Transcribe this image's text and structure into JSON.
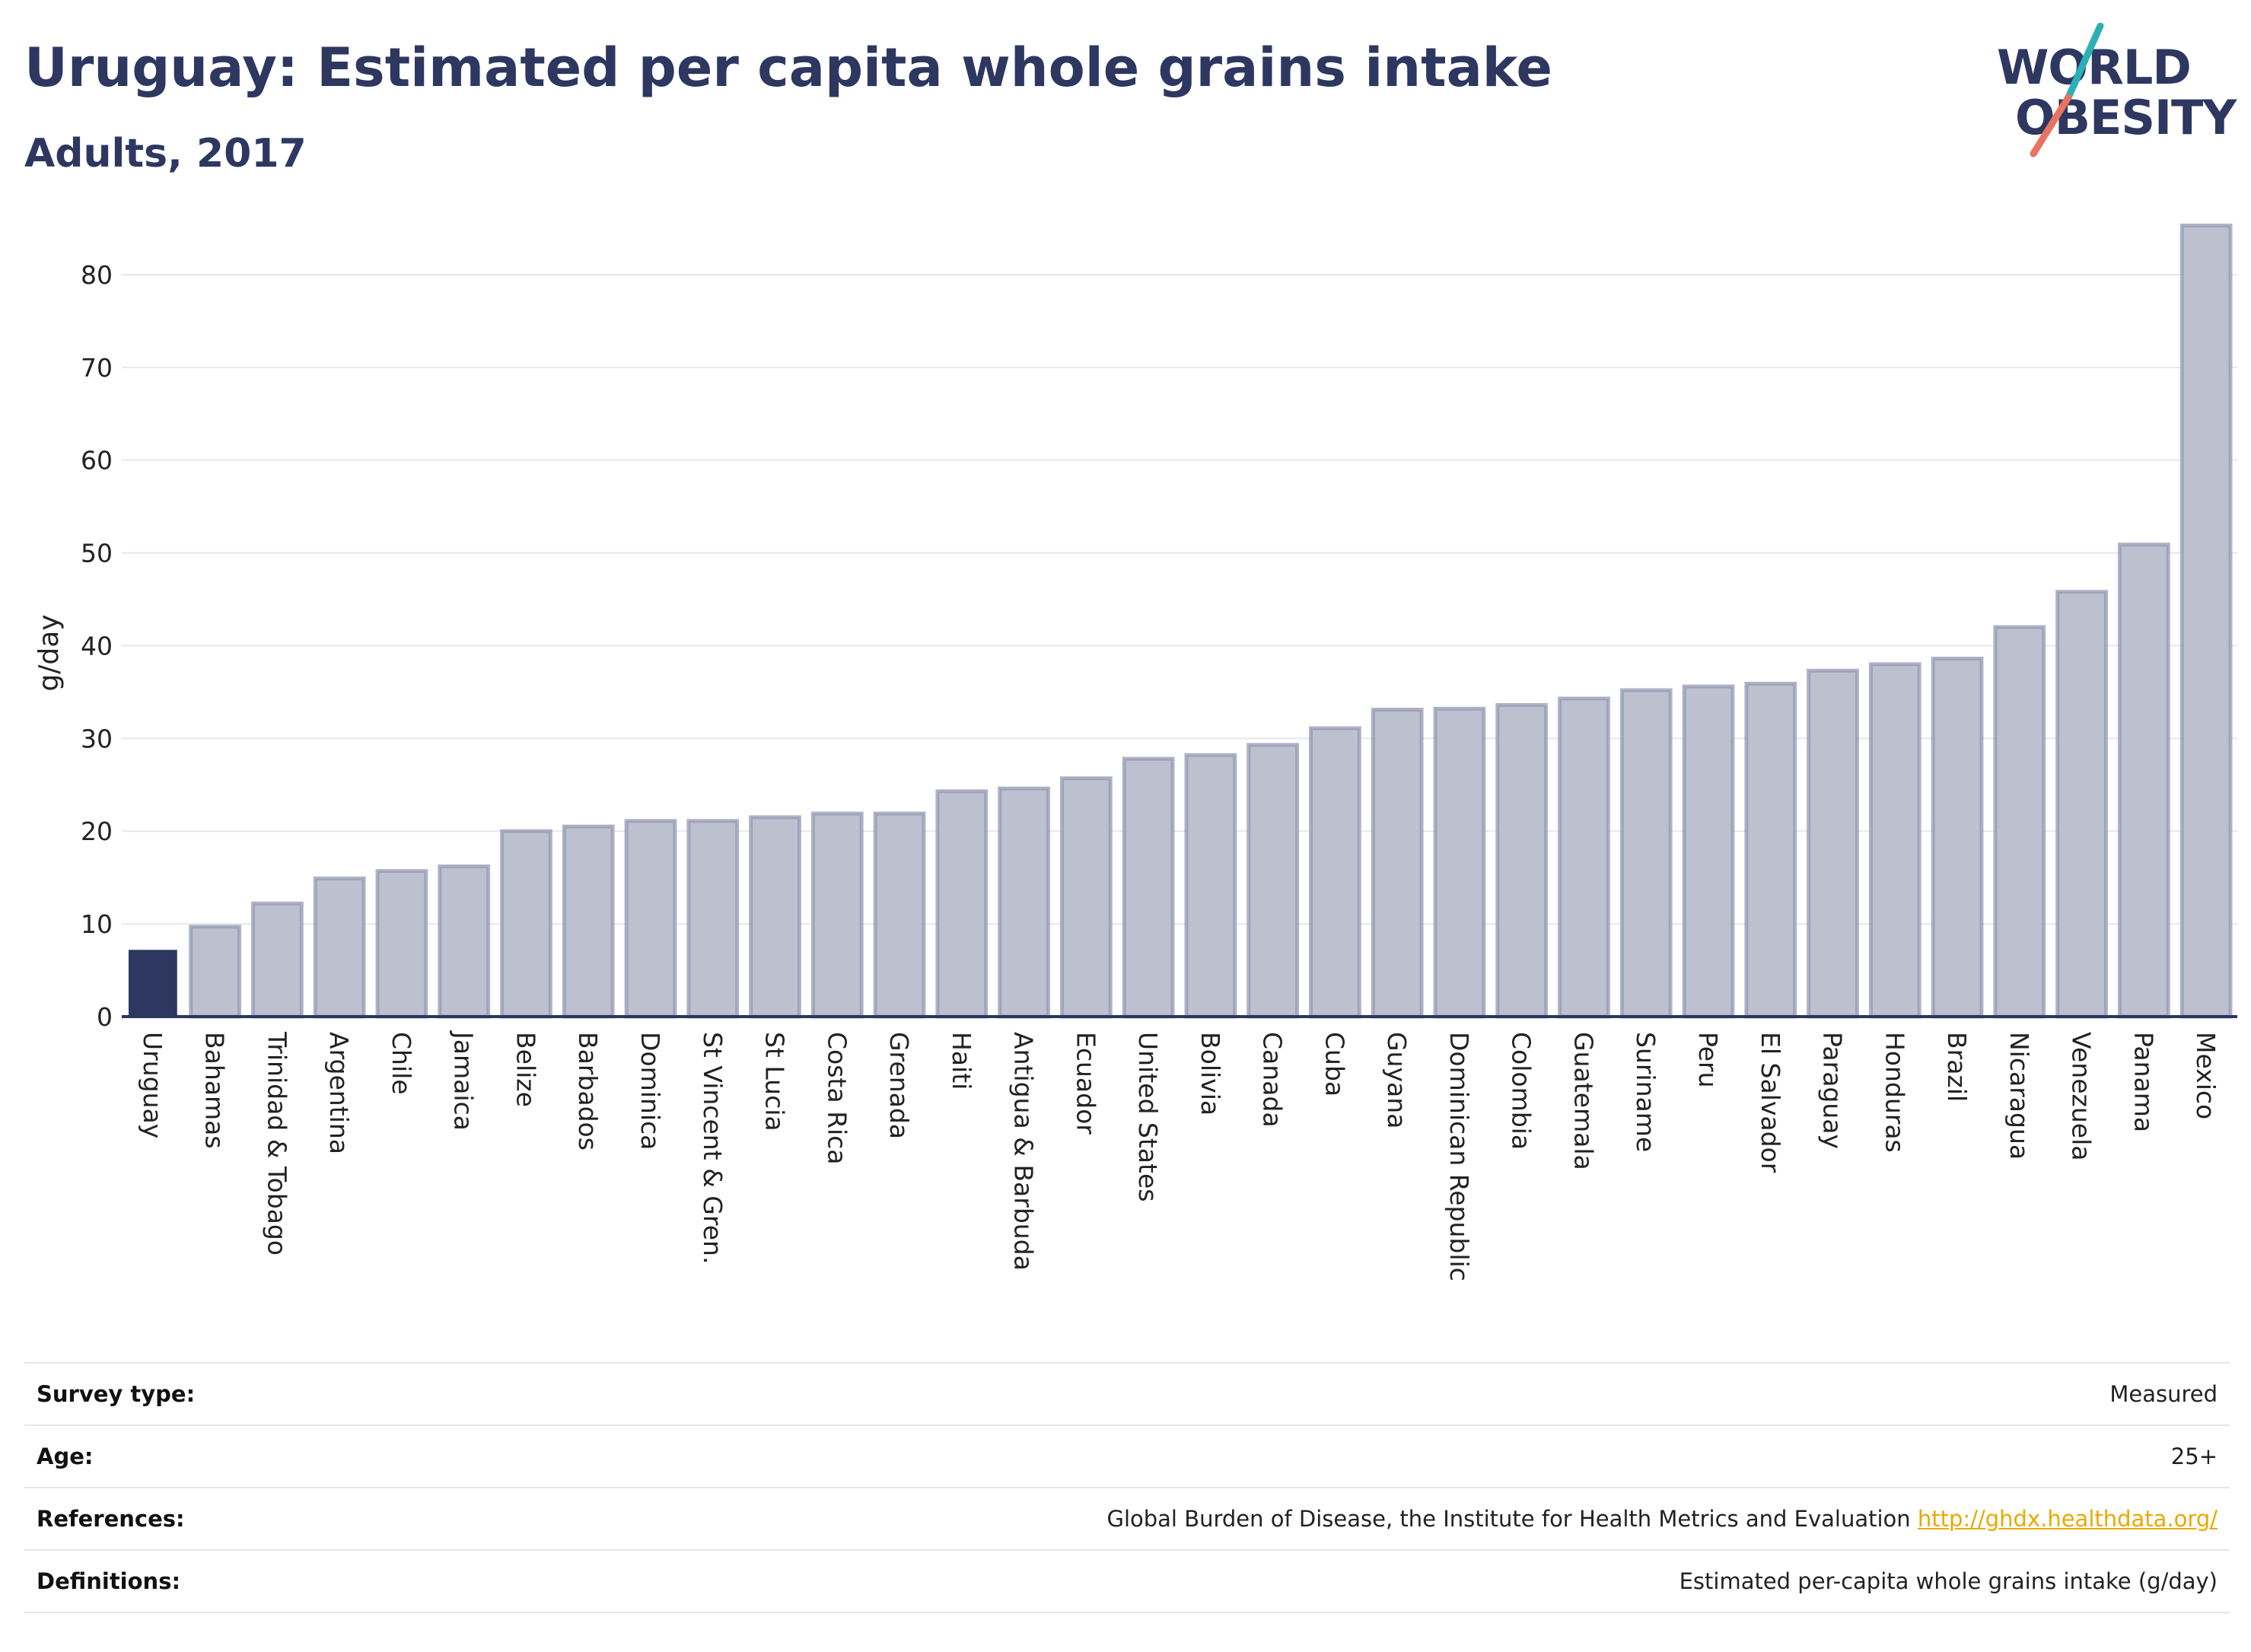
{
  "header": {
    "title": "Uruguay: Estimated per capita whole grains intake",
    "subtitle": "Adults, 2017"
  },
  "logo": {
    "line1": "WORLD",
    "line2": "OBESITY",
    "colors": {
      "text": "#2d3760",
      "slash_top": "#2bb0b8",
      "slash_bottom": "#e8735f"
    }
  },
  "colors": {
    "highlight_bar": "#2d3760",
    "bar_fill": "#bcc0cf",
    "bar_stroke": "#9599b3",
    "grid": "#e8e8e8",
    "axis": "#2d3760",
    "link": "#e8a900"
  },
  "chart_data": {
    "type": "bar",
    "ylabel": "g/day",
    "ylim": [
      0,
      85
    ],
    "yticks": [
      0,
      10,
      20,
      30,
      40,
      50,
      60,
      70,
      80
    ],
    "grid": true,
    "highlight": "Uruguay",
    "categories": [
      "Uruguay",
      "Bahamas",
      "Trinidad & Tobago",
      "Argentina",
      "Chile",
      "Jamaica",
      "Belize",
      "Barbados",
      "Dominica",
      "St Vincent & Gren.",
      "St Lucia",
      "Costa Rica",
      "Grenada",
      "Haiti",
      "Antigua & Barbuda",
      "Ecuador",
      "United States",
      "Bolivia",
      "Canada",
      "Cuba",
      "Guyana",
      "Dominican Republic",
      "Colombia",
      "Guatemala",
      "Suriname",
      "Peru",
      "El Salvador",
      "Paraguay",
      "Honduras",
      "Brazil",
      "Nicaragua",
      "Venezuela",
      "Panama",
      "Mexico"
    ],
    "values": [
      7.2,
      9.7,
      12.2,
      14.9,
      15.7,
      16.2,
      20.0,
      20.5,
      21.1,
      21.1,
      21.5,
      21.9,
      21.9,
      24.3,
      24.6,
      25.7,
      27.8,
      28.2,
      29.3,
      31.1,
      33.1,
      33.2,
      33.6,
      34.3,
      35.2,
      35.6,
      35.9,
      37.3,
      38.0,
      38.6,
      42.0,
      45.8,
      50.9,
      85.3
    ]
  },
  "info": {
    "survey_type_label": "Survey type:",
    "survey_type_value": "Measured",
    "age_label": "Age:",
    "age_value": "25+",
    "references_label": "References:",
    "references_text": "Global Burden of Disease, the Institute for Health Metrics and Evaluation",
    "references_link": "http://ghdx.healthdata.org/",
    "definitions_label": "Definitions:",
    "definitions_value": "Estimated per-capita whole grains intake (g/day)"
  }
}
